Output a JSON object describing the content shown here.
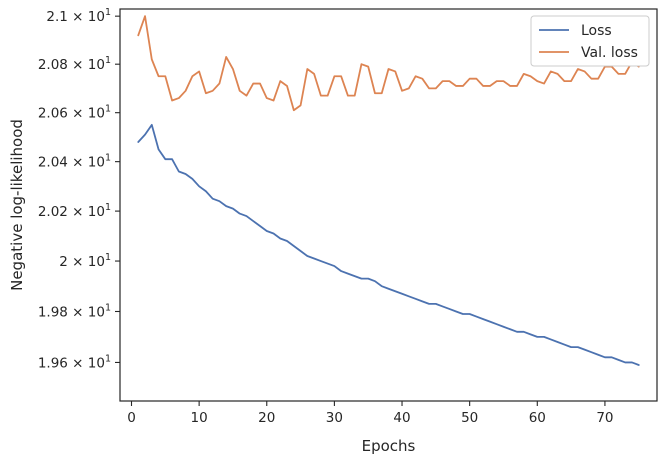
{
  "chart_data": {
    "type": "line",
    "title": "",
    "xlabel": "Epochs",
    "ylabel": "Negative log-likelihood",
    "yscale": "log",
    "grid": false,
    "legend_placement": "top-right",
    "xlim": [
      -1.7,
      77.7
    ],
    "ylim": [
      19.45,
      21.03
    ],
    "x_ticks": [
      0,
      10,
      20,
      30,
      40,
      50,
      60,
      70
    ],
    "y_ticks": [
      {
        "value": 19.6,
        "mantissa": "1.96",
        "base": "10",
        "exponent": "1"
      },
      {
        "value": 19.8,
        "mantissa": "1.98",
        "base": "10",
        "exponent": "1"
      },
      {
        "value": 20.0,
        "mantissa": "2",
        "base": "10",
        "exponent": "1"
      },
      {
        "value": 20.2,
        "mantissa": "2.02",
        "base": "10",
        "exponent": "1"
      },
      {
        "value": 20.4,
        "mantissa": "2.04",
        "base": "10",
        "exponent": "1"
      },
      {
        "value": 20.6,
        "mantissa": "2.06",
        "base": "10",
        "exponent": "1"
      },
      {
        "value": 20.8,
        "mantissa": "2.08",
        "base": "10",
        "exponent": "1"
      },
      {
        "value": 21.0,
        "mantissa": "2.1",
        "base": "10",
        "exponent": "1"
      }
    ],
    "series": [
      {
        "name": "Loss",
        "color": "#4c72b0",
        "x_start": 1,
        "values": [
          20.48,
          20.51,
          20.55,
          20.45,
          20.41,
          20.41,
          20.36,
          20.35,
          20.33,
          20.3,
          20.28,
          20.25,
          20.24,
          20.22,
          20.21,
          20.19,
          20.18,
          20.16,
          20.14,
          20.12,
          20.11,
          20.09,
          20.08,
          20.06,
          20.04,
          20.02,
          20.01,
          20.0,
          19.99,
          19.98,
          19.96,
          19.95,
          19.94,
          19.93,
          19.93,
          19.92,
          19.9,
          19.89,
          19.88,
          19.87,
          19.86,
          19.85,
          19.84,
          19.83,
          19.83,
          19.82,
          19.81,
          19.8,
          19.79,
          19.79,
          19.78,
          19.77,
          19.76,
          19.75,
          19.74,
          19.73,
          19.72,
          19.72,
          19.71,
          19.7,
          19.7,
          19.69,
          19.68,
          19.67,
          19.66,
          19.66,
          19.65,
          19.64,
          19.63,
          19.62,
          19.62,
          19.61,
          19.6,
          19.6,
          19.59
        ]
      },
      {
        "name": "Val. loss",
        "color": "#dd8452",
        "x_start": 1,
        "values": [
          20.92,
          21.0,
          20.82,
          20.75,
          20.75,
          20.65,
          20.66,
          20.69,
          20.75,
          20.77,
          20.68,
          20.69,
          20.72,
          20.83,
          20.78,
          20.69,
          20.67,
          20.72,
          20.72,
          20.66,
          20.65,
          20.73,
          20.71,
          20.61,
          20.63,
          20.78,
          20.76,
          20.67,
          20.67,
          20.75,
          20.75,
          20.67,
          20.67,
          20.8,
          20.79,
          20.68,
          20.68,
          20.78,
          20.77,
          20.69,
          20.7,
          20.75,
          20.74,
          20.7,
          20.7,
          20.73,
          20.73,
          20.71,
          20.71,
          20.74,
          20.74,
          20.71,
          20.71,
          20.73,
          20.73,
          20.71,
          20.71,
          20.76,
          20.75,
          20.73,
          20.72,
          20.77,
          20.76,
          20.73,
          20.73,
          20.78,
          20.77,
          20.74,
          20.74,
          20.79,
          20.79,
          20.76,
          20.76,
          20.81,
          20.79
        ]
      }
    ]
  }
}
